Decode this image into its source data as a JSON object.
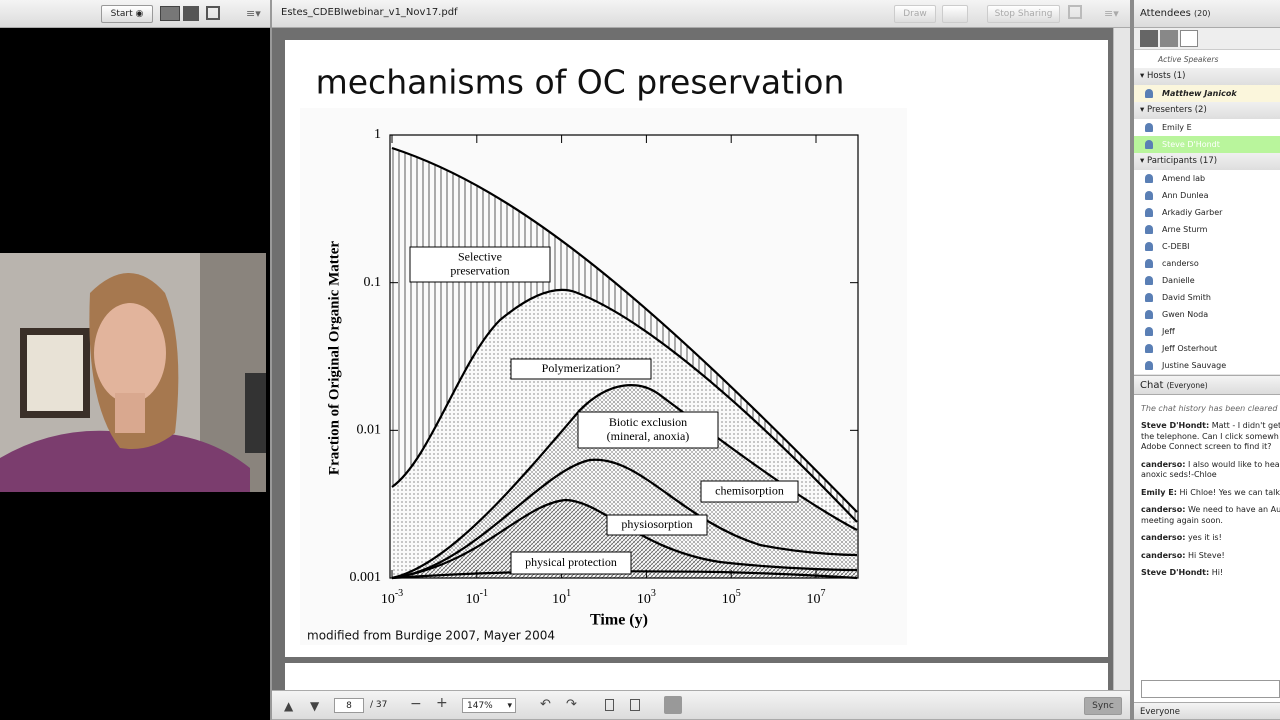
{
  "left_pod": {
    "start_button": "Start"
  },
  "share_pod": {
    "file_name": "Estes_CDEBIwebinar_v1_Nov17.pdf",
    "buttons": [
      "Draw",
      "Stop Sharing"
    ],
    "slide": {
      "title": "mechanisms of OC preservation",
      "caption": "modified from Burdige 2007, Mayer 2004",
      "figure": {
        "y_label": "Fraction of Original Organic Matter",
        "x_label": "Time (y)",
        "y_ticks": [
          "1",
          "0.1",
          "0.01",
          "0.001"
        ],
        "x_ticks": [
          {
            "base": "10",
            "exp": "-3"
          },
          {
            "base": "10",
            "exp": "-1"
          },
          {
            "base": "10",
            "exp": "1"
          },
          {
            "base": "10",
            "exp": "3"
          },
          {
            "base": "10",
            "exp": "5"
          },
          {
            "base": "10",
            "exp": "7"
          }
        ],
        "regions": [
          [
            "Selective",
            "preservation"
          ],
          [
            "Polymerization?"
          ],
          [
            "Biotic exclusion",
            "(mineral, anoxia)"
          ],
          [
            "chemisorption"
          ],
          [
            "physiosorption"
          ],
          [
            "physical protection"
          ]
        ]
      }
    },
    "toolbar": {
      "page": "8",
      "page_count": "/ 37",
      "zoom": "147%",
      "sync": "Sync"
    }
  },
  "attendees": {
    "title": "Attendees",
    "count": "(20)",
    "active": "Active Speakers",
    "groups": [
      {
        "heading": "Hosts (1)",
        "members": [
          "Matthew Janicok"
        ]
      },
      {
        "heading": "Presenters (2)",
        "members": [
          "Emily E",
          "Steve D'Hondt"
        ]
      },
      {
        "heading": "Participants (17)",
        "members": [
          "Amend lab",
          "Ann Dunlea",
          "Arkadiy Garber",
          "Arne Sturm",
          "C-DEBI",
          "canderso",
          "Danielle",
          "David Smith",
          "Gwen Noda",
          "Jeff",
          "Jeff Osterhout",
          "Justine Sauvage"
        ]
      }
    ]
  },
  "chat": {
    "title": "Chat",
    "scope": "(Everyone)",
    "notice": "The chat history has been cleared",
    "messages": [
      {
        "sender": "Steve D'Hondt:",
        "lines": [
          "Matt - I didn't get a",
          "the telephone. Can I click somewh",
          "Adobe Connect screen to find it?"
        ]
      },
      {
        "sender": "canderso:",
        "lines": [
          "I also would like to hear a",
          "anoxic seds!-Chloe"
        ]
      },
      {
        "sender": "Emily E:",
        "lines": [
          "Hi Chloe! Yes we can talk s"
        ]
      },
      {
        "sender": "canderso:",
        "lines": [
          "We need to have an Auth",
          "meeting again soon."
        ]
      },
      {
        "sender": "canderso:",
        "lines": [
          "yes it is!"
        ]
      },
      {
        "sender": "canderso:",
        "lines": [
          "Hi Steve!"
        ]
      },
      {
        "sender": "Steve D'Hondt:",
        "lines": [
          "Hi!"
        ]
      }
    ],
    "recipient": "Everyone"
  }
}
